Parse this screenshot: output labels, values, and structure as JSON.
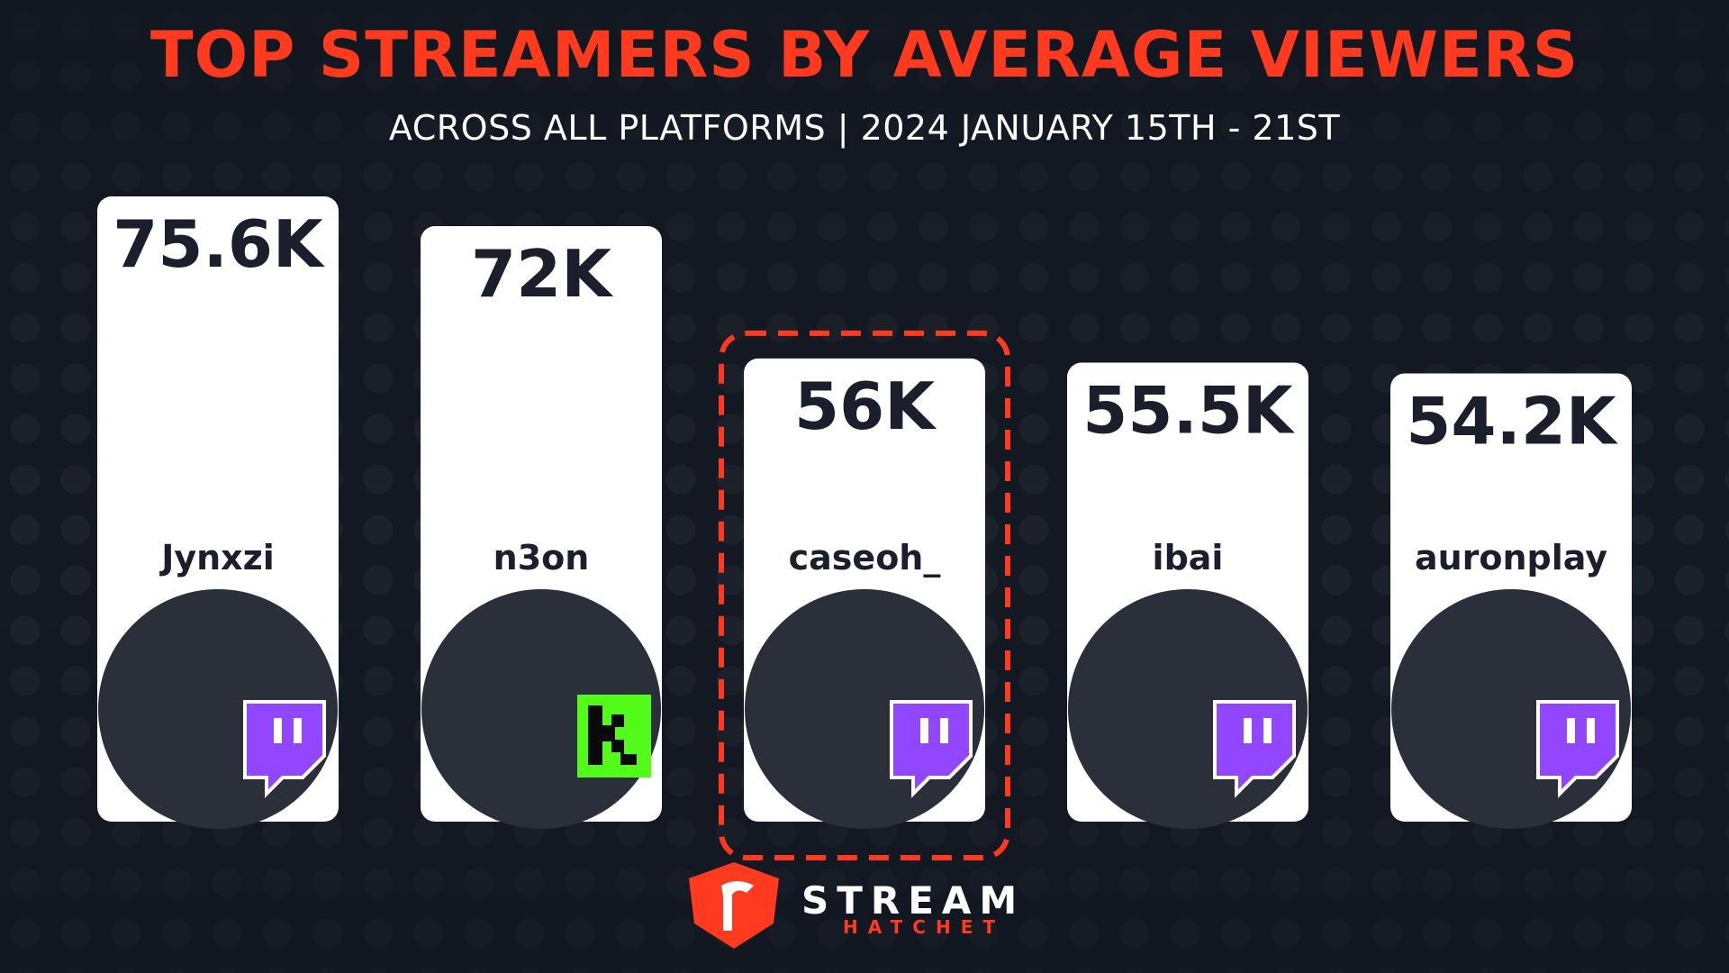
{
  "title": "TOP STREAMERS BY AVERAGE VIEWERS",
  "subtitle": "ACROSS ALL PLATFORMS | 2024 JANUARY 15TH - 21ST",
  "brand": {
    "line1": "STREAM",
    "line2": "HATCHET"
  },
  "colors": {
    "accent": "#ff3a1e",
    "background": "#121720",
    "bar": "#ffffff",
    "value_text": "#1a1f2b",
    "twitch": "#9146ff",
    "kick": "#53fc18"
  },
  "chart_data": {
    "type": "bar",
    "categories": [
      "Jynxzi",
      "n3on",
      "caseoh_",
      "ibai",
      "auronplay"
    ],
    "values": [
      75600,
      72000,
      56000,
      55500,
      54200
    ],
    "value_labels": [
      "75.6K",
      "72K",
      "56K",
      "55.5K",
      "54.2K"
    ],
    "platforms": [
      "twitch",
      "kick",
      "twitch",
      "twitch",
      "twitch"
    ],
    "highlighted": "caseoh_",
    "title": "TOP STREAMERS BY AVERAGE VIEWERS",
    "xlabel": "",
    "ylabel": "",
    "grid": false,
    "legend": "none"
  }
}
